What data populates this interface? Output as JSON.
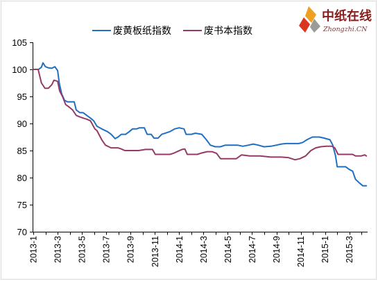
{
  "logo": {
    "name": "中纸在线",
    "domain": "Zhongzhi.CN"
  },
  "chart_data": {
    "type": "line",
    "ylim": [
      70,
      105
    ],
    "yticks": [
      70,
      75,
      80,
      85,
      90,
      95,
      100,
      105
    ],
    "xlim": [
      "2013-01-01",
      "2015-04-16"
    ],
    "xticks": [
      "2013-1",
      "2013-3",
      "2013-5",
      "2013-7",
      "2013-9",
      "2013-11",
      "2014-1",
      "2014-3",
      "2014-5",
      "2014-7",
      "2014-9",
      "2014-11",
      "2015-1",
      "2015-3"
    ],
    "grid": false,
    "legend": "top",
    "series": [
      {
        "name": "废黄板纸指数",
        "color": "#1f6fc4",
        "dates": [
          "2013-01-01",
          "2013-01-14",
          "2013-01-21",
          "2013-01-25",
          "2013-02-01",
          "2013-02-08",
          "2013-02-17",
          "2013-02-24",
          "2013-03-01",
          "2013-03-05",
          "2013-03-11",
          "2013-03-18",
          "2013-03-25",
          "2013-04-12",
          "2013-04-17",
          "2013-04-26",
          "2013-05-04",
          "2013-05-13",
          "2013-05-22",
          "2013-05-30",
          "2013-06-08",
          "2013-06-20",
          "2013-07-04",
          "2013-07-13",
          "2013-07-23",
          "2013-07-30",
          "2013-08-08",
          "2013-08-19",
          "2013-08-28",
          "2013-09-06",
          "2013-09-16",
          "2013-09-23",
          "2013-10-05",
          "2013-10-12",
          "2013-10-22",
          "2013-10-29",
          "2013-11-09",
          "2013-11-18",
          "2013-11-30",
          "2013-12-08",
          "2013-12-20",
          "2014-01-01",
          "2014-01-13",
          "2014-01-18",
          "2014-02-01",
          "2014-02-11",
          "2014-02-27",
          "2014-03-08",
          "2014-03-18",
          "2014-03-30",
          "2014-04-13",
          "2014-04-25",
          "2014-05-13",
          "2014-05-25",
          "2014-06-08",
          "2014-06-22",
          "2014-07-04",
          "2014-07-16",
          "2014-07-30",
          "2014-08-17",
          "2014-09-01",
          "2014-09-13",
          "2014-09-25",
          "2014-10-26",
          "2014-11-06",
          "2014-11-16",
          "2014-11-30",
          "2014-12-17",
          "2014-12-29",
          "2015-01-13",
          "2015-01-20",
          "2015-01-27",
          "2015-02-01",
          "2015-02-22",
          "2015-03-01",
          "2015-03-09",
          "2015-03-16",
          "2015-03-26",
          "2015-04-04",
          "2015-04-13"
        ],
        "values": [
          100,
          100,
          100.4,
          101.2,
          100.5,
          100.3,
          100.2,
          100.5,
          99.8,
          97.5,
          95.5,
          94.3,
          94,
          94,
          92.5,
          92,
          92,
          91.5,
          91,
          90.5,
          89.5,
          89,
          88.5,
          88,
          87.2,
          87.5,
          88,
          88,
          88.5,
          89,
          89,
          89.2,
          89.2,
          88,
          88,
          87.3,
          87.3,
          88,
          88.3,
          88.5,
          89,
          89.2,
          89,
          88,
          88,
          88.2,
          88,
          87,
          86,
          85.7,
          85.7,
          86,
          86,
          86,
          85.8,
          86,
          86.2,
          86,
          85.7,
          85.8,
          86,
          86.2,
          86.3,
          86.3,
          86.5,
          87,
          87.5,
          87.5,
          87.3,
          87,
          86,
          84,
          82,
          82,
          81.5,
          81.2,
          79.7,
          79,
          78.5,
          78.5
        ]
      },
      {
        "name": "废书本指数",
        "color": "#963a64",
        "dates": [
          "2013-01-01",
          "2013-01-13",
          "2013-01-21",
          "2013-01-30",
          "2013-02-08",
          "2013-02-17",
          "2013-02-22",
          "2013-03-01",
          "2013-03-06",
          "2013-03-13",
          "2013-03-21",
          "2013-03-30",
          "2013-04-08",
          "2013-04-17",
          "2013-04-26",
          "2013-05-04",
          "2013-05-13",
          "2013-05-22",
          "2013-06-03",
          "2013-06-08",
          "2013-06-20",
          "2013-06-29",
          "2013-07-13",
          "2013-07-30",
          "2013-08-08",
          "2013-08-17",
          "2013-09-21",
          "2013-10-08",
          "2013-10-25",
          "2013-11-02",
          "2013-12-08",
          "2013-12-17",
          "2014-01-08",
          "2014-01-15",
          "2014-01-21",
          "2014-02-16",
          "2014-02-24",
          "2014-03-10",
          "2014-03-22",
          "2014-04-03",
          "2014-04-13",
          "2014-05-22",
          "2014-06-05",
          "2014-06-25",
          "2014-07-21",
          "2014-08-17",
          "2014-09-13",
          "2014-09-30",
          "2014-10-17",
          "2014-10-29",
          "2014-11-13",
          "2014-11-26",
          "2014-12-08",
          "2014-12-20",
          "2015-01-04",
          "2015-01-18",
          "2015-01-25",
          "2015-02-03",
          "2015-03-09",
          "2015-03-16",
          "2015-03-30",
          "2015-04-09",
          "2015-04-13"
        ],
        "values": [
          100,
          100,
          97.5,
          96.5,
          96.5,
          97.2,
          98,
          97.8,
          96,
          95,
          93.5,
          93,
          92.5,
          91.5,
          91.2,
          91,
          90.8,
          90.5,
          89,
          88.7,
          87,
          86,
          85.5,
          85.5,
          85.3,
          85,
          85,
          85.2,
          85.2,
          84.3,
          84.3,
          84.5,
          85.2,
          85.3,
          84.3,
          84.3,
          84.5,
          84.8,
          84.8,
          84.5,
          83.5,
          83.5,
          84.2,
          84,
          84,
          83.8,
          83.8,
          83.7,
          83.3,
          83.5,
          84,
          85,
          85.5,
          85.7,
          85.8,
          85.8,
          85.5,
          84.3,
          84.3,
          84,
          84,
          84.2,
          84
        ]
      }
    ]
  }
}
